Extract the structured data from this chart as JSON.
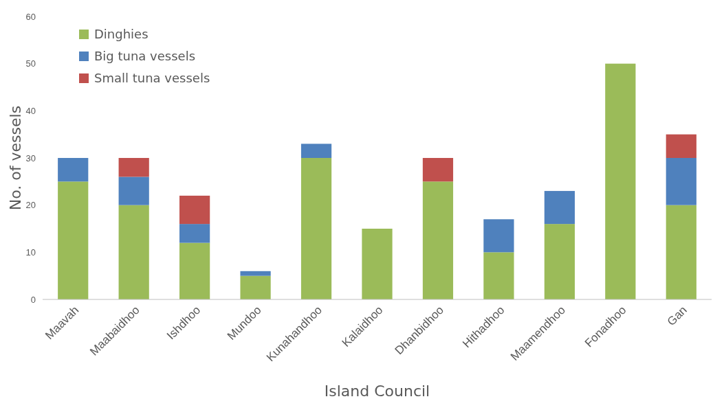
{
  "chart_data": {
    "type": "bar",
    "stacked": true,
    "xlabel": "Island Council",
    "ylabel": "No. of vessels",
    "categories": [
      "Maavah",
      "Maabaidhoo",
      "Ishdhoo",
      "Mundoo",
      "Kunahandhoo",
      "Kalaidhoo",
      "Dhanbidhoo",
      "Hithadhoo",
      "Maamendhoo",
      "Fonadhoo",
      "Gan"
    ],
    "series": [
      {
        "name": "Dinghies",
        "color": "#9bbb59",
        "values": [
          25,
          20,
          12,
          5,
          30,
          15,
          25,
          10,
          16,
          50,
          20
        ]
      },
      {
        "name": "Big tuna vessels",
        "color": "#4f81bd",
        "values": [
          5,
          6,
          4,
          1,
          3,
          null,
          null,
          7,
          7,
          null,
          10
        ]
      },
      {
        "name": "Small tuna vessels",
        "color": "#c0504d",
        "values": [
          null,
          4,
          6,
          null,
          null,
          null,
          5,
          null,
          null,
          null,
          5
        ]
      }
    ],
    "ylim": [
      0,
      60
    ],
    "yticks": [
      0,
      10,
      20,
      30,
      40,
      50,
      60
    ],
    "grid": false,
    "legend": "top left"
  }
}
